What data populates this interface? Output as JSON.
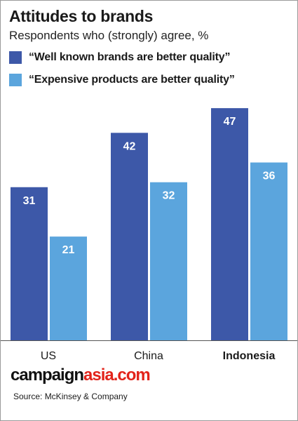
{
  "header": {
    "title": "Attitudes to brands",
    "subtitle": "Respondents who (strongly) agree, %"
  },
  "legend": [
    {
      "label": "“Well known brands are better quality”",
      "color": "#3d58a8"
    },
    {
      "label": "“Expensive products are better quality”",
      "color": "#5ba5dd"
    }
  ],
  "chart_data": {
    "type": "bar",
    "title": "Attitudes to brands",
    "subtitle": "Respondents who (strongly) agree, %",
    "categories": [
      "US",
      "China",
      "Indonesia"
    ],
    "highlight_category": "Indonesia",
    "series": [
      {
        "name": "“Well known brands are better quality”",
        "values": [
          31,
          42,
          47
        ],
        "color": "#3d58a8"
      },
      {
        "name": "“Expensive products are better quality”",
        "values": [
          21,
          32,
          36
        ],
        "color": "#5ba5dd"
      }
    ],
    "xlabel": "",
    "ylabel": "",
    "ylim": [
      0,
      50
    ],
    "grid": false,
    "legend_position": "top-left",
    "data_labels": true
  },
  "footer": {
    "brand_part1": "campaign",
    "brand_part2": "asia.com",
    "source": "Source: McKinsey & Company"
  }
}
